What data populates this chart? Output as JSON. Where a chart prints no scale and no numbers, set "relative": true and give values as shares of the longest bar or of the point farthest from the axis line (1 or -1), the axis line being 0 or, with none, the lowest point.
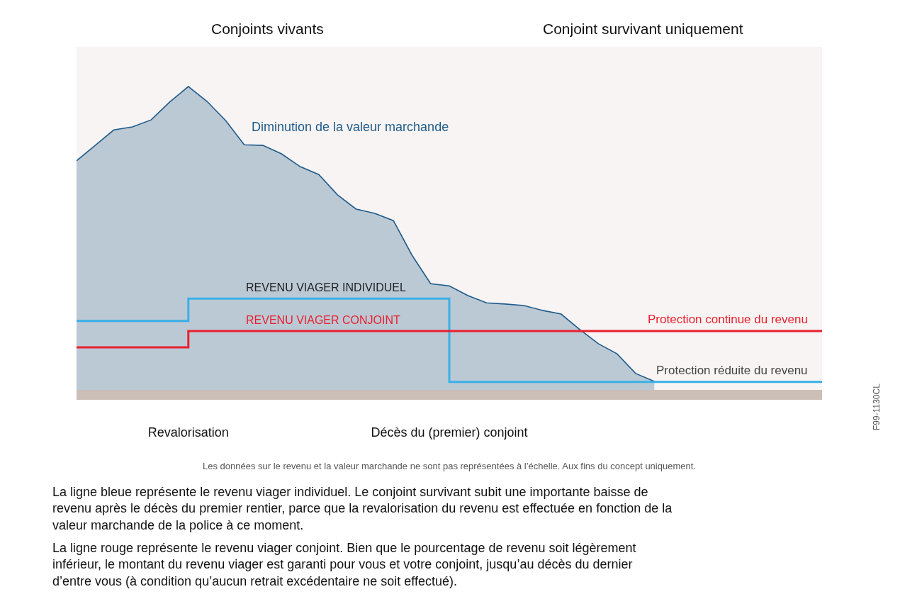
{
  "chart_data": {
    "type": "step",
    "relative": true,
    "legend": false,
    "grid": false,
    "categories": [
      null,
      null,
      null,
      null,
      null,
      null,
      "Revalorisation",
      null,
      null,
      null,
      null,
      null,
      null,
      null,
      null,
      null,
      null,
      null,
      null,
      null,
      "Décès du (premier) conjoint",
      null,
      null,
      null,
      null,
      null,
      null,
      null,
      null,
      null,
      null,
      null,
      null,
      null,
      null,
      null,
      null,
      null,
      null,
      null,
      null
    ],
    "series": [
      {
        "name": "Diminution de la valeur marchande",
        "type": "area",
        "color": "#1f5a8a",
        "values": [
          0.755,
          0.806,
          0.857,
          0.867,
          0.89,
          0.949,
          1.0,
          0.951,
          0.888,
          0.808,
          0.806,
          0.778,
          0.736,
          0.71,
          0.643,
          0.596,
          0.582,
          0.558,
          0.444,
          0.35,
          0.343,
          0.311,
          0.287,
          0.283,
          0.278,
          0.262,
          0.25,
          0.199,
          0.152,
          0.119,
          0.054,
          0.028,
          null,
          null,
          null,
          null,
          null,
          null,
          null,
          null,
          null
        ]
      },
      {
        "name": "REVENU VIAGER INDIVIDUEL",
        "color": "#3ab0e6",
        "values": [
          0.227,
          0.227,
          0.227,
          0.227,
          0.227,
          0.227,
          0.301,
          0.301,
          0.301,
          0.301,
          0.301,
          0.301,
          0.301,
          0.301,
          0.301,
          0.301,
          0.301,
          0.301,
          0.301,
          0.301,
          0.026,
          0.026,
          0.026,
          0.026,
          0.026,
          0.026,
          0.026,
          0.026,
          0.026,
          0.026,
          0.026,
          0.026,
          0.026,
          0.026,
          0.026,
          0.026,
          0.026,
          0.026,
          0.026,
          0.026,
          0.026
        ]
      },
      {
        "name": "REVENU VIAGER CONJOINT",
        "color": "#e8202e",
        "values": [
          0.14,
          0.14,
          0.14,
          0.14,
          0.14,
          0.14,
          0.194,
          0.194,
          0.194,
          0.194,
          0.194,
          0.194,
          0.194,
          0.194,
          0.194,
          0.194,
          0.194,
          0.194,
          0.194,
          0.194,
          0.194,
          0.194,
          0.194,
          0.194,
          0.194,
          0.194,
          0.194,
          0.194,
          0.194,
          0.194,
          0.194,
          0.194,
          0.194,
          0.194,
          0.194,
          0.194,
          0.194,
          0.194,
          0.194,
          0.194,
          0.194
        ]
      }
    ],
    "annotations": [
      "Conjoints vivants",
      "Conjoint survivant uniquement",
      {
        "text": "Protection continue du revenu",
        "y": 0.194
      },
      {
        "text": "Protection réduite du revenu",
        "y": 0.026
      },
      "Les données sur le revenu et la valeur marchande ne sont pas représentées à l’échelle. Aux fins du concept uniquement.",
      "La ligne bleue représente le revenu viager individuel. Le conjoint survivant subit une importante baisse de revenu après le décès du premier rentier, parce que la revalorisation du revenu est effectuée en fonction de la valeur marchande de la police à ce moment.",
      "La ligne rouge représente le revenu viager conjoint. Bien que le pourcentage de revenu soit légèrement inférieur, le montant du revenu viager est garanti pour vous et votre conjoint, jusqu’au décès du dernier d’entre vous (à condition qu’aucun retrait excédentaire ne soit effectué).",
      "F99-1130CL"
    ]
  }
}
